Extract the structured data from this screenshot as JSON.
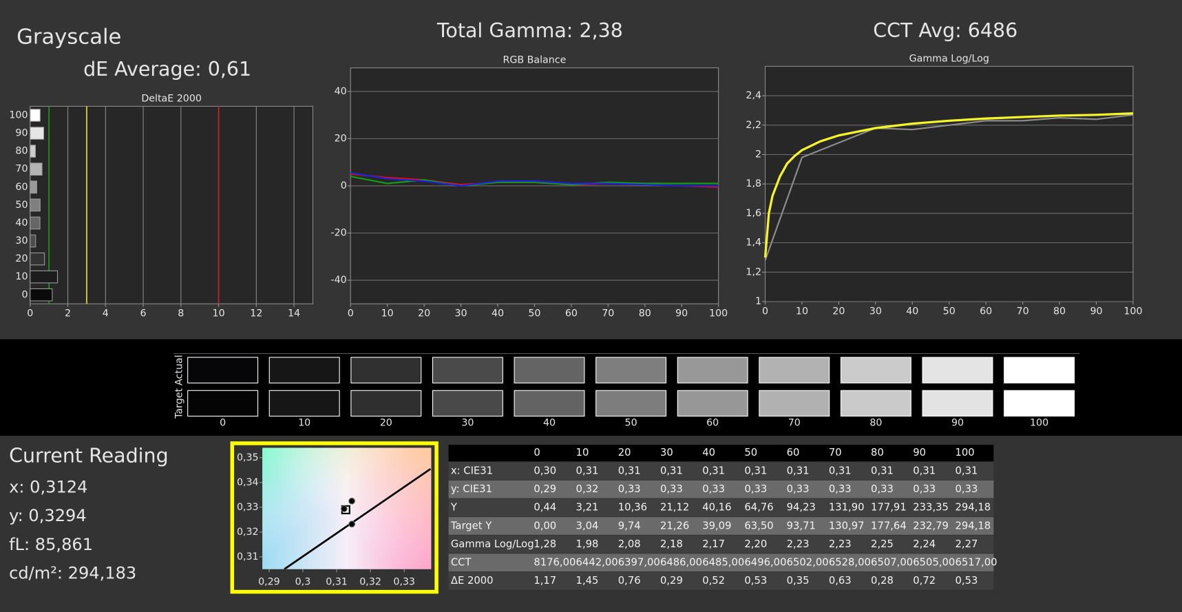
{
  "header": {
    "title": "Grayscale",
    "de_average": "dE Average: 0,61",
    "total_gamma": "Total Gamma: 2,38",
    "cct_avg": "CCT Avg: 6486"
  },
  "chart_data": [
    {
      "type": "bar",
      "orientation": "horizontal",
      "title": "DeltaE 2000",
      "categories": [
        "100",
        "90",
        "80",
        "70",
        "60",
        "50",
        "40",
        "30",
        "20",
        "10",
        "0"
      ],
      "values": [
        0.53,
        0.72,
        0.28,
        0.63,
        0.35,
        0.53,
        0.52,
        0.29,
        0.76,
        1.45,
        1.17
      ],
      "colors": [
        "#ffffff",
        "#e6e6e6",
        "#cdcdcd",
        "#b3b3b3",
        "#999999",
        "#808080",
        "#666666",
        "#4d4d4d",
        "#333333",
        "#1c1c1c",
        "#0a0a0a"
      ],
      "xlim": [
        0,
        15
      ],
      "xticks": [
        0,
        2,
        4,
        6,
        8,
        10,
        12,
        14
      ],
      "grid": "x",
      "thresholds": [
        {
          "value": 1,
          "color": "#1f9a1f"
        },
        {
          "value": 3,
          "color": "#e8e81a"
        },
        {
          "value": 10,
          "color": "#d02020"
        }
      ]
    },
    {
      "type": "line",
      "title": "RGB Balance",
      "x": [
        0,
        10,
        20,
        30,
        40,
        50,
        60,
        70,
        80,
        90,
        100
      ],
      "series": [
        {
          "color": "#e01010",
          "values": [
            5,
            3.5,
            2.5,
            0.5,
            1.5,
            1.5,
            0.5,
            1,
            0.5,
            0,
            -0.5
          ]
        },
        {
          "color": "#10a010",
          "values": [
            4,
            1,
            2.5,
            0,
            1.5,
            1.5,
            0.5,
            1.5,
            1,
            1,
            1
          ]
        },
        {
          "color": "#2020e0",
          "values": [
            5.5,
            3,
            2,
            0,
            2,
            2,
            1,
            1,
            0.5,
            0,
            0
          ]
        }
      ],
      "xlim": [
        0,
        100
      ],
      "xticks": [
        0,
        10,
        20,
        30,
        40,
        50,
        60,
        70,
        80,
        90,
        100
      ],
      "ylim": [
        -50,
        50
      ],
      "yticks": [
        -40,
        -20,
        0,
        20,
        40
      ],
      "grid": "y"
    },
    {
      "type": "line",
      "title": "Gamma Log/Log",
      "series": [
        {
          "color": "#8c8c8c",
          "x": [
            0,
            10,
            20,
            30,
            40,
            50,
            60,
            70,
            80,
            90,
            100
          ],
          "values": [
            1.28,
            1.98,
            2.08,
            2.18,
            2.17,
            2.2,
            2.23,
            2.23,
            2.25,
            2.24,
            2.27
          ]
        },
        {
          "color": "#f5f52a",
          "x": [
            0,
            1,
            2,
            4,
            6,
            8,
            10,
            15,
            20,
            30,
            40,
            50,
            60,
            70,
            80,
            90,
            100
          ],
          "values": [
            1.3,
            1.6,
            1.72,
            1.85,
            1.94,
            1.99,
            2.03,
            2.09,
            2.13,
            2.18,
            2.21,
            2.23,
            2.245,
            2.255,
            2.265,
            2.27,
            2.28
          ]
        }
      ],
      "xlim": [
        0,
        100
      ],
      "xticks": [
        0,
        10,
        20,
        30,
        40,
        50,
        60,
        70,
        80,
        90,
        100
      ],
      "ylim": [
        1,
        2.6
      ],
      "yticks": [
        1,
        {
          "value": 1.2,
          "label": "1,2"
        },
        {
          "value": 1.4,
          "label": "1,4"
        },
        {
          "value": 1.6,
          "label": "1,6"
        },
        {
          "value": 1.8,
          "label": "1,8"
        },
        2,
        {
          "value": 2.2,
          "label": "2,2"
        },
        {
          "value": 2.4,
          "label": "2,4"
        }
      ],
      "grid": "y"
    },
    {
      "type": "scatter",
      "points": {
        "x": [
          0.3145,
          0.3145,
          0.3122
        ],
        "y": [
          0.3325,
          0.3232,
          0.3294
        ],
        "color": "#000000"
      },
      "target_point": {
        "x": 0.3127,
        "y": 0.329
      },
      "locus": {
        "x": [
          0.2945,
          0.3378
        ],
        "y": [
          0.305,
          0.3455
        ],
        "color": "#000000"
      },
      "xlim": [
        0.288,
        0.338
      ],
      "xticks": [
        {
          "value": 0.29,
          "label": "0,29"
        },
        {
          "value": 0.3,
          "label": "0,3"
        },
        {
          "value": 0.31,
          "label": "0,31"
        },
        {
          "value": 0.32,
          "label": "0,32"
        },
        {
          "value": 0.33,
          "label": "0,33"
        }
      ],
      "ylim": [
        0.305,
        0.354
      ],
      "yticks": [
        {
          "value": 0.31,
          "label": "0,31"
        },
        {
          "value": 0.32,
          "label": "0,32"
        },
        {
          "value": 0.33,
          "label": "0,33"
        },
        {
          "value": 0.34,
          "label": "0,34"
        },
        {
          "value": 0.35,
          "label": "0,35"
        }
      ]
    }
  ],
  "swatches": {
    "actual_label": "Actual",
    "target_label": "Target",
    "levels": [
      "0",
      "10",
      "20",
      "30",
      "40",
      "50",
      "60",
      "70",
      "80",
      "90",
      "100"
    ],
    "actual_colors": [
      "#060608",
      "#161616",
      "#303030",
      "#4a4a4a",
      "#646464",
      "#7e7e7e",
      "#989898",
      "#b2b2b2",
      "#cbcbcb",
      "#e4e4e4",
      "#ffffff"
    ],
    "target_colors": [
      "#040404",
      "#161616",
      "#2f2f2f",
      "#494949",
      "#636363",
      "#7d7d7d",
      "#979797",
      "#b1b1b1",
      "#cacaca",
      "#e3e3e3",
      "#ffffff"
    ]
  },
  "current_reading": {
    "title": "Current Reading",
    "lines": [
      "x: 0,3124",
      "y: 0,3294",
      "fL: 85,861",
      "cd/m²: 294,183"
    ]
  },
  "table": {
    "columns": [
      "0",
      "10",
      "20",
      "30",
      "40",
      "50",
      "60",
      "70",
      "80",
      "90",
      "100"
    ],
    "rows": [
      {
        "label": "x: CIE31",
        "cells": [
          "0,30",
          "0,31",
          "0,31",
          "0,31",
          "0,31",
          "0,31",
          "0,31",
          "0,31",
          "0,31",
          "0,31",
          "0,31"
        ]
      },
      {
        "label": "y: CIE31",
        "cells": [
          "0,29",
          "0,32",
          "0,33",
          "0,33",
          "0,33",
          "0,33",
          "0,33",
          "0,33",
          "0,33",
          "0,33",
          "0,33"
        ]
      },
      {
        "label": "Y",
        "cells": [
          "0,44",
          "3,21",
          "10,36",
          "21,12",
          "40,16",
          "64,76",
          "94,23",
          "131,90",
          "177,91",
          "233,35",
          "294,18"
        ]
      },
      {
        "label": "Target Y",
        "cells": [
          "0,00",
          "3,04",
          "9,74",
          "21,26",
          "39,09",
          "63,50",
          "93,71",
          "130,97",
          "177,64",
          "232,79",
          "294,18"
        ]
      },
      {
        "label": "Gamma Log/Log",
        "cells": [
          "1,28",
          "1,98",
          "2,08",
          "2,18",
          "2,17",
          "2,20",
          "2,23",
          "2,23",
          "2,25",
          "2,24",
          "2,27"
        ]
      },
      {
        "label": "CCT",
        "cells": [
          "8176,00",
          "6442,00",
          "6397,00",
          "6486,00",
          "6485,00",
          "6496,00",
          "6502,00",
          "6528,00",
          "6507,00",
          "6505,00",
          "6517,00"
        ]
      },
      {
        "label": "ΔE 2000",
        "cells": [
          "1,17",
          "1,45",
          "0,76",
          "0,29",
          "0,52",
          "0,53",
          "0,35",
          "0,63",
          "0,28",
          "0,72",
          "0,53"
        ]
      }
    ]
  }
}
